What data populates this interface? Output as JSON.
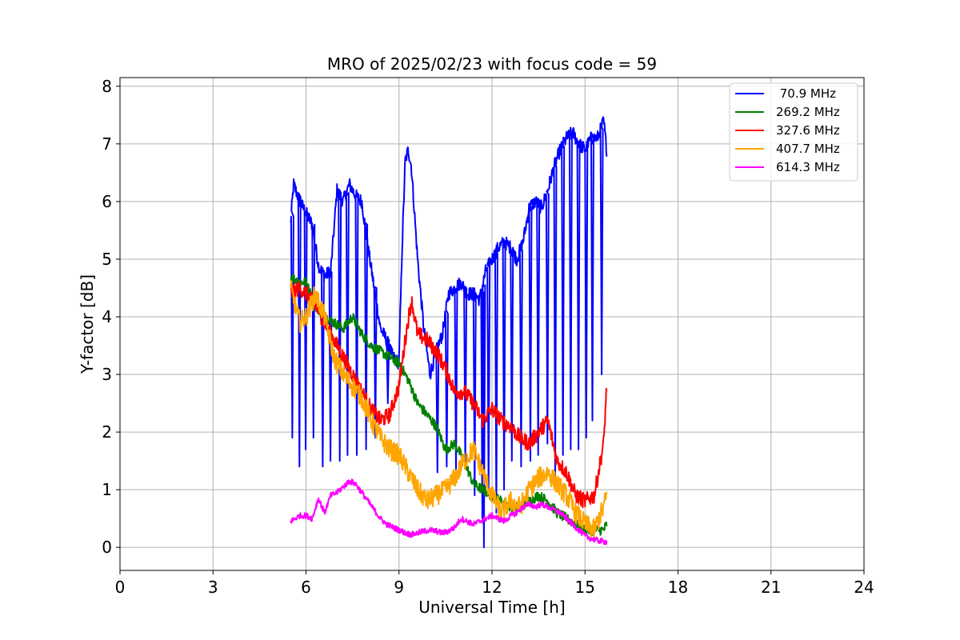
{
  "chart_data": {
    "type": "line",
    "title": "MRO of 2025/02/23 with focus code = 59",
    "xlabel": "Universal Time [h]",
    "ylabel": "Y-factor [dB]",
    "xlim": [
      0,
      24
    ],
    "ylim": [
      -0.4,
      8.15
    ],
    "xticks": [
      0,
      3,
      6,
      9,
      12,
      15,
      18,
      21,
      24
    ],
    "xtick_labels": [
      "0",
      "3",
      "6",
      "9",
      "12",
      "15",
      "18",
      "21",
      "24"
    ],
    "yticks": [
      0,
      1,
      2,
      3,
      4,
      5,
      6,
      7,
      8
    ],
    "ytick_labels": [
      "0",
      "1",
      "2",
      "3",
      "4",
      "5",
      "6",
      "7",
      "8"
    ],
    "grid": true,
    "legend_position": "top-right",
    "series": [
      {
        "name": " 70.9 MHz",
        "color": "#0000ff",
        "x": [
          5.5,
          5.6,
          5.8,
          6.0,
          6.2,
          6.4,
          6.6,
          6.8,
          7.0,
          7.2,
          7.4,
          7.6,
          7.8,
          8.0,
          8.2,
          8.4,
          8.6,
          8.8,
          9.0,
          9.1,
          9.2,
          9.3,
          9.4,
          9.6,
          9.8,
          10.0,
          10.2,
          10.4,
          10.6,
          10.8,
          11.0,
          11.2,
          11.4,
          11.6,
          11.8,
          12.0,
          12.2,
          12.4,
          12.6,
          12.8,
          13.0,
          13.2,
          13.4,
          13.6,
          13.8,
          14.0,
          14.2,
          14.4,
          14.6,
          14.8,
          15.0,
          15.2,
          15.4,
          15.6,
          15.7
        ],
        "y": [
          5.6,
          6.3,
          6.0,
          5.8,
          5.6,
          4.9,
          4.7,
          4.8,
          6.2,
          6.0,
          6.3,
          6.1,
          6.0,
          5.2,
          4.5,
          3.8,
          3.6,
          3.3,
          3.2,
          5.2,
          6.7,
          6.9,
          6.6,
          5.0,
          3.8,
          3.0,
          3.4,
          3.7,
          4.4,
          4.5,
          4.6,
          4.4,
          4.4,
          4.3,
          4.8,
          5.0,
          5.2,
          5.3,
          5.2,
          5.0,
          5.3,
          5.9,
          6.0,
          5.9,
          6.2,
          6.6,
          6.9,
          7.1,
          7.2,
          7.0,
          6.9,
          7.1,
          7.1,
          7.4,
          6.9
        ],
        "dips": [
          {
            "x": 5.52,
            "y": 1.9
          },
          {
            "x": 5.75,
            "y": 1.4
          },
          {
            "x": 5.95,
            "y": 1.7
          },
          {
            "x": 6.2,
            "y": 1.9
          },
          {
            "x": 6.5,
            "y": 1.4
          },
          {
            "x": 6.75,
            "y": 1.5
          },
          {
            "x": 7.05,
            "y": 1.5
          },
          {
            "x": 7.3,
            "y": 1.6
          },
          {
            "x": 7.6,
            "y": 1.6
          },
          {
            "x": 7.9,
            "y": 1.7
          },
          {
            "x": 8.2,
            "y": 1.9
          },
          {
            "x": 8.6,
            "y": 2.5
          },
          {
            "x": 10.2,
            "y": 1.3
          },
          {
            "x": 10.5,
            "y": 1.4
          },
          {
            "x": 10.8,
            "y": 1.2
          },
          {
            "x": 11.1,
            "y": 1.4
          },
          {
            "x": 11.4,
            "y": 0.9
          },
          {
            "x": 11.65,
            "y": 0.5
          },
          {
            "x": 11.85,
            "y": 0.9
          },
          {
            "x": 12.1,
            "y": 0.6
          },
          {
            "x": 12.35,
            "y": 1.0
          },
          {
            "x": 12.6,
            "y": 1.5
          },
          {
            "x": 12.9,
            "y": 1.4
          },
          {
            "x": 13.2,
            "y": 1.5
          },
          {
            "x": 13.45,
            "y": 1.6
          },
          {
            "x": 13.75,
            "y": 1.8
          },
          {
            "x": 14.0,
            "y": 1.2
          },
          {
            "x": 14.25,
            "y": 1.6
          },
          {
            "x": 14.5,
            "y": 1.7
          },
          {
            "x": 14.75,
            "y": 1.7
          },
          {
            "x": 15.0,
            "y": 1.9
          },
          {
            "x": 15.2,
            "y": 2.2
          },
          {
            "x": 15.5,
            "y": 3.0
          },
          {
            "x": 11.7,
            "y": 0.0
          }
        ]
      },
      {
        "name": "269.2 MHz",
        "color": "#008000",
        "x": [
          5.5,
          5.8,
          6.0,
          6.3,
          6.6,
          6.9,
          7.2,
          7.5,
          7.8,
          8.1,
          8.4,
          8.7,
          9.0,
          9.3,
          9.6,
          9.9,
          10.2,
          10.5,
          10.8,
          11.1,
          11.4,
          11.7,
          12.0,
          12.3,
          12.6,
          12.9,
          13.2,
          13.5,
          13.8,
          14.1,
          14.4,
          14.7,
          15.0,
          15.3,
          15.6,
          15.7
        ],
        "y": [
          4.7,
          4.6,
          4.6,
          4.2,
          4.0,
          3.9,
          3.8,
          4.0,
          3.7,
          3.5,
          3.4,
          3.3,
          3.2,
          2.9,
          2.5,
          2.3,
          2.1,
          1.7,
          1.8,
          1.5,
          1.1,
          1.0,
          0.9,
          0.8,
          0.7,
          0.7,
          0.8,
          0.9,
          0.8,
          0.6,
          0.5,
          0.4,
          0.3,
          0.3,
          0.3,
          0.4
        ]
      },
      {
        "name": "327.6 MHz",
        "color": "#ff0000",
        "x": [
          5.5,
          5.8,
          6.0,
          6.3,
          6.6,
          6.9,
          7.2,
          7.5,
          7.8,
          8.1,
          8.4,
          8.7,
          9.0,
          9.2,
          9.4,
          9.6,
          9.9,
          10.2,
          10.5,
          10.8,
          11.1,
          11.4,
          11.7,
          12.0,
          12.3,
          12.6,
          12.9,
          13.2,
          13.5,
          13.8,
          14.1,
          14.4,
          14.7,
          15.0,
          15.3,
          15.6,
          15.7
        ],
        "y": [
          4.4,
          4.5,
          4.4,
          4.2,
          3.9,
          3.6,
          3.3,
          3.0,
          2.7,
          2.4,
          2.2,
          2.3,
          2.8,
          3.6,
          4.3,
          3.7,
          3.6,
          3.4,
          3.1,
          2.7,
          2.7,
          2.5,
          2.2,
          2.4,
          2.2,
          2.1,
          1.9,
          1.8,
          2.0,
          2.2,
          1.5,
          1.3,
          0.9,
          0.8,
          0.9,
          1.8,
          2.8
        ]
      },
      {
        "name": "407.7 MHz",
        "color": "#ffa500",
        "x": [
          5.5,
          5.8,
          6.0,
          6.3,
          6.6,
          6.9,
          7.2,
          7.5,
          7.8,
          8.1,
          8.4,
          8.7,
          9.0,
          9.3,
          9.6,
          9.9,
          10.2,
          10.5,
          10.8,
          11.1,
          11.4,
          11.7,
          12.0,
          12.3,
          12.6,
          12.9,
          13.2,
          13.5,
          13.8,
          14.1,
          14.4,
          14.7,
          15.0,
          15.3,
          15.6,
          15.7
        ],
        "y": [
          4.5,
          3.9,
          4.0,
          4.4,
          4.0,
          3.3,
          3.0,
          2.8,
          2.6,
          2.2,
          1.9,
          1.7,
          1.6,
          1.3,
          1.0,
          0.8,
          0.9,
          1.0,
          1.2,
          1.5,
          1.7,
          1.3,
          0.9,
          0.6,
          0.8,
          0.7,
          1.0,
          1.2,
          1.3,
          1.1,
          0.9,
          0.6,
          0.4,
          0.3,
          0.7,
          0.9
        ]
      },
      {
        "name": "614.3 MHz",
        "color": "#ff00ff",
        "x": [
          5.5,
          5.8,
          6.0,
          6.2,
          6.4,
          6.6,
          6.8,
          7.0,
          7.2,
          7.4,
          7.6,
          7.8,
          8.0,
          8.2,
          8.4,
          8.6,
          8.8,
          9.0,
          9.2,
          9.4,
          9.6,
          9.8,
          10.0,
          10.2,
          10.4,
          10.6,
          10.8,
          11.0,
          11.2,
          11.4,
          11.6,
          11.8,
          12.0,
          12.2,
          12.4,
          12.6,
          12.8,
          13.0,
          13.2,
          13.4,
          13.6,
          13.8,
          14.0,
          14.2,
          14.4,
          14.6,
          14.8,
          15.0,
          15.2,
          15.4,
          15.6,
          15.7
        ],
        "y": [
          0.45,
          0.55,
          0.55,
          0.5,
          0.85,
          0.6,
          0.9,
          0.95,
          1.05,
          1.15,
          1.1,
          0.95,
          0.8,
          0.65,
          0.5,
          0.4,
          0.35,
          0.3,
          0.25,
          0.22,
          0.25,
          0.28,
          0.3,
          0.28,
          0.25,
          0.28,
          0.35,
          0.5,
          0.45,
          0.4,
          0.45,
          0.5,
          0.55,
          0.5,
          0.45,
          0.55,
          0.6,
          0.7,
          0.75,
          0.7,
          0.75,
          0.7,
          0.65,
          0.6,
          0.5,
          0.4,
          0.3,
          0.2,
          0.15,
          0.12,
          0.1,
          0.1
        ]
      }
    ]
  }
}
